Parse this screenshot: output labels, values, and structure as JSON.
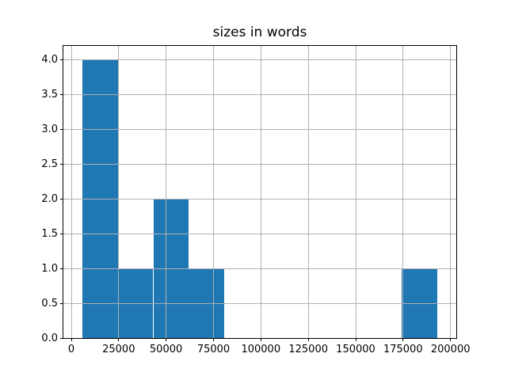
{
  "title": "sizes in words",
  "colors": {
    "bar": "#1f77b4",
    "grid": "#b0b0b0",
    "spine": "#000000",
    "background": "#ffffff",
    "text": "#000000"
  },
  "chart_data": {
    "type": "bar",
    "subtype": "histogram",
    "title": "sizes in words",
    "xlabel": "",
    "ylabel": "",
    "bin_edges": [
      5800,
      24530,
      43260,
      61990,
      80720,
      99450,
      118180,
      136910,
      155640,
      174370,
      193100
    ],
    "counts": [
      4,
      1,
      2,
      1,
      0,
      0,
      0,
      0,
      0,
      1
    ],
    "x_ticks": [
      0,
      25000,
      50000,
      75000,
      100000,
      125000,
      150000,
      175000,
      200000
    ],
    "x_tick_labels": [
      "0",
      "25000",
      "50000",
      "75000",
      "100000",
      "125000",
      "150000",
      "175000",
      "200000"
    ],
    "y_ticks": [
      0.0,
      0.5,
      1.0,
      1.5,
      2.0,
      2.5,
      3.0,
      3.5,
      4.0
    ],
    "y_tick_labels": [
      "0.0",
      "0.5",
      "1.0",
      "1.5",
      "2.0",
      "2.5",
      "3.0",
      "3.5",
      "4.0"
    ],
    "xlim": [
      -4165,
      203065
    ],
    "ylim": [
      0,
      4.2
    ],
    "grid": true,
    "grid_above_bars": true,
    "legend": null,
    "bar_color": "#1f77b4"
  }
}
